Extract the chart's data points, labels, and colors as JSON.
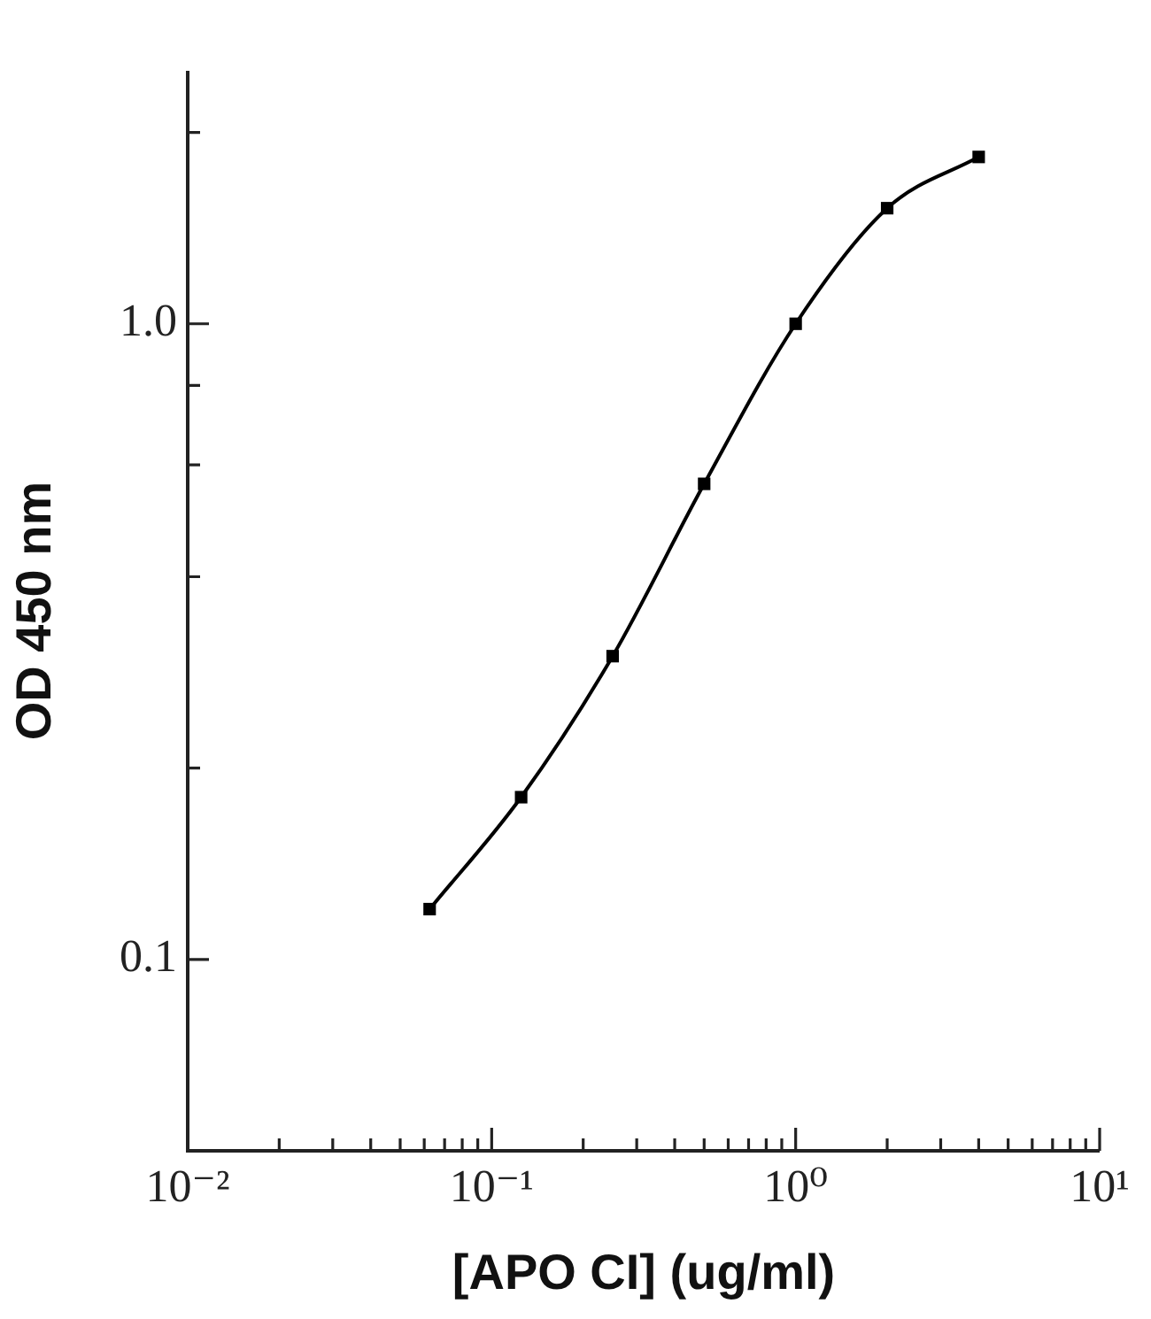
{
  "chart_data": {
    "type": "line",
    "xlabel": "[APO CI] (ug/ml)",
    "ylabel": "OD 450 nm",
    "x": [
      0.0625,
      0.125,
      0.25,
      0.5,
      1,
      2,
      4
    ],
    "series": [
      {
        "color": "#000000",
        "values": [
          0.12,
          0.18,
          0.3,
          0.56,
          1.0,
          1.52,
          1.83
        ]
      }
    ],
    "log": "xy",
    "marker": "square",
    "line_style": "solid",
    "xlim": [
      0.01,
      10
    ],
    "ylim": [
      0.05,
      2.5
    ],
    "xticks": [
      {
        "value": 0.01,
        "label": "10⁻²"
      },
      {
        "value": 0.02,
        "label": null
      },
      {
        "value": 0.03,
        "label": null
      },
      {
        "value": 0.04,
        "label": null
      },
      {
        "value": 0.05,
        "label": null
      },
      {
        "value": 0.06,
        "label": null
      },
      {
        "value": 0.07,
        "label": null
      },
      {
        "value": 0.08,
        "label": null
      },
      {
        "value": 0.09,
        "label": null
      },
      {
        "value": 0.1,
        "label": "10⁻¹"
      },
      {
        "value": 0.2,
        "label": null
      },
      {
        "value": 0.3,
        "label": null
      },
      {
        "value": 0.4,
        "label": null
      },
      {
        "value": 0.5,
        "label": null
      },
      {
        "value": 0.6,
        "label": null
      },
      {
        "value": 0.7,
        "label": null
      },
      {
        "value": 0.8,
        "label": null
      },
      {
        "value": 0.9,
        "label": null
      },
      {
        "value": 1,
        "label": "10⁰"
      },
      {
        "value": 2,
        "label": null
      },
      {
        "value": 3,
        "label": null
      },
      {
        "value": 4,
        "label": null
      },
      {
        "value": 5,
        "label": null
      },
      {
        "value": 6,
        "label": null
      },
      {
        "value": 7,
        "label": null
      },
      {
        "value": 8,
        "label": null
      },
      {
        "value": 9,
        "label": null
      },
      {
        "value": 10,
        "label": "10¹"
      }
    ],
    "yticks": [
      0.1,
      {
        "value": 0.2,
        "label": null
      },
      {
        "value": 0.4,
        "label": null
      },
      {
        "value": 0.6,
        "label": null
      },
      {
        "value": 0.8,
        "label": null
      },
      {
        "value": 1,
        "label": "1.0"
      },
      {
        "value": 2,
        "label": null
      }
    ]
  }
}
